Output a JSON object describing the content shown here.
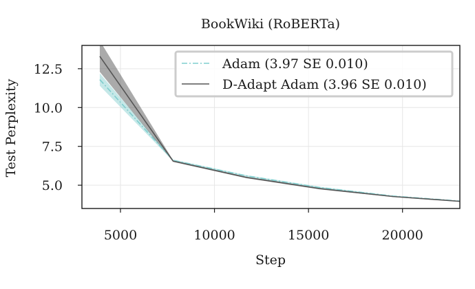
{
  "chart_data": {
    "type": "line",
    "title": "BookWiki (RoBERTa)",
    "xlabel": "Step",
    "ylabel": "Test Perplexity",
    "xlim": [
      2950,
      23050
    ],
    "ylim": [
      3.5,
      14.0
    ],
    "xticks": [
      5000,
      10000,
      15000,
      20000
    ],
    "xtick_labels": [
      "5000",
      "10000",
      "15000",
      "20000"
    ],
    "yticks": [
      5.0,
      7.5,
      10.0,
      12.5
    ],
    "ytick_labels": [
      "5.0",
      "7.5",
      "10.0",
      "12.5"
    ],
    "grid": true,
    "legend_position": "top-right",
    "series": [
      {
        "name": "Adam (3.97 SE 0.010)",
        "color": "#7fcdcd",
        "line_style": "dash-dot",
        "x": [
          3900,
          7800,
          11700,
          15600,
          19500,
          23050
        ],
        "y": [
          11.8,
          6.6,
          5.6,
          4.85,
          4.3,
          3.98
        ],
        "lower": [
          11.4,
          6.55,
          5.55,
          4.8,
          4.27,
          3.95
        ],
        "upper": [
          12.2,
          6.65,
          5.65,
          4.9,
          4.33,
          4.0
        ]
      },
      {
        "name": "D-Adapt Adam (3.96 SE 0.010)",
        "color": "#555555",
        "line_style": "solid",
        "x": [
          3900,
          7800,
          11700,
          15600,
          19500,
          23050
        ],
        "y": [
          13.3,
          6.55,
          5.5,
          4.78,
          4.27,
          3.96
        ],
        "lower": [
          12.3,
          6.5,
          5.45,
          4.73,
          4.24,
          3.93
        ],
        "upper": [
          14.3,
          6.6,
          5.55,
          4.83,
          4.3,
          3.99
        ]
      }
    ]
  }
}
